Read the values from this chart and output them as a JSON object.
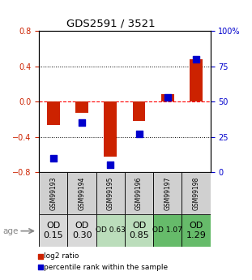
{
  "title": "GDS2591 / 3521",
  "samples": [
    "GSM99193",
    "GSM99194",
    "GSM99195",
    "GSM99196",
    "GSM99197",
    "GSM99198"
  ],
  "log2_ratio": [
    -0.27,
    -0.13,
    -0.62,
    -0.22,
    0.08,
    0.48
  ],
  "percentile_rank": [
    10,
    35,
    5,
    27,
    53,
    80
  ],
  "age_labels": [
    "OD\n0.15",
    "OD\n0.30",
    "OD 0.63",
    "OD\n0.85",
    "OD 1.07",
    "OD\n1.29"
  ],
  "age_bg_colors": [
    "#d9d9d9",
    "#d9d9d9",
    "#bbddbb",
    "#bbddbb",
    "#66bb6a",
    "#66bb6a"
  ],
  "age_fontsize": [
    8,
    8,
    6.5,
    8,
    6.5,
    8
  ],
  "ylim_left": [
    -0.8,
    0.8
  ],
  "ylim_right": [
    0,
    100
  ],
  "yticks_left": [
    -0.8,
    -0.4,
    0.0,
    0.4,
    0.8
  ],
  "yticks_right": [
    0,
    25,
    50,
    75,
    100
  ],
  "ytick_labels_right": [
    "0",
    "25",
    "50",
    "75",
    "100%"
  ],
  "bar_color_red": "#cc2200",
  "bar_color_blue": "#0000cc",
  "dot_size": 28,
  "legend_red": "log2 ratio",
  "legend_blue": "percentile rank within the sample",
  "header_bg": "#d0d0d0"
}
